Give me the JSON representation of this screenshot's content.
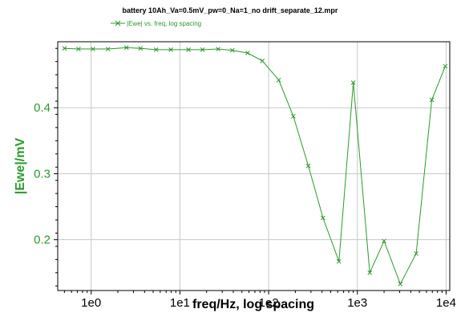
{
  "chart_data": {
    "type": "line",
    "title": "battery 10Ah_Va=0.5mV_pw=0_Na=1_no drift_separate_12.mpr",
    "xlabel": "freq/Hz, log spacing",
    "ylabel": "|Ewe|/mV",
    "xscale": "log",
    "xlim": [
      0.42,
      11000
    ],
    "ylim": [
      0.123,
      0.5
    ],
    "xticks": [
      1,
      10,
      100,
      1000,
      10000
    ],
    "xtick_labels": [
      "1e0",
      "1e1",
      "1e2",
      "1e3",
      "1e4"
    ],
    "yticks": [
      0.2,
      0.3,
      0.4
    ],
    "ytick_labels": [
      "0.2",
      "0.3",
      "0.4"
    ],
    "grid": true,
    "legend_position": "top-center",
    "colors": {
      "series": "#2a9a2a",
      "axis_accent": "#2a9a2a",
      "grid": "#c8c8c8"
    },
    "series": [
      {
        "name": "|Ewe| vs. freq, log spacing",
        "marker": "x",
        "x": [
          0.5,
          0.72,
          1.05,
          1.55,
          2.5,
          3.6,
          5.4,
          7.9,
          12.5,
          18,
          27,
          39,
          58,
          85,
          130,
          190,
          280,
          410,
          620,
          900,
          1380,
          2000,
          3050,
          4600,
          6900,
          9800
        ],
        "y": [
          0.49,
          0.489,
          0.489,
          0.489,
          0.491,
          0.49,
          0.488,
          0.488,
          0.488,
          0.488,
          0.489,
          0.487,
          0.483,
          0.471,
          0.442,
          0.387,
          0.312,
          0.233,
          0.167,
          0.438,
          0.15,
          0.198,
          0.133,
          0.179,
          0.412,
          0.463
        ]
      }
    ]
  }
}
